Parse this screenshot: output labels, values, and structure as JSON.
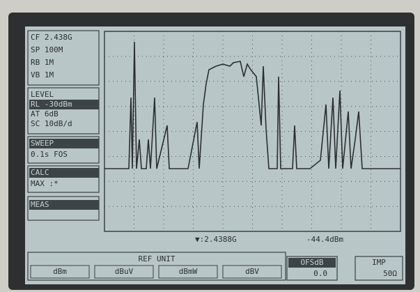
{
  "left_panel": {
    "frequency": [
      "CF  2.438G",
      "SP  100M",
      "RB  1M",
      "VB  1M"
    ],
    "level": {
      "title": "LEVEL",
      "lines": [
        "RL -30dBm",
        "AT 6dB",
        "SC 10dB/d"
      ]
    },
    "sweep": {
      "title": "SWEEP",
      "lines": [
        "0.1s FOS"
      ]
    },
    "calc": {
      "title": "CALC",
      "lines": [
        "MAX   :*"
      ]
    },
    "meas": {
      "title": "MEAS"
    }
  },
  "marker": {
    "frequency": "▼:2.4388G",
    "level": "-44.4dBm"
  },
  "softkeys": {
    "title": "REF UNIT",
    "options": [
      "dBm",
      "dBuV",
      "dBmW",
      "dBV"
    ]
  },
  "offset": {
    "label": "OFSdB",
    "value": "0.0"
  },
  "impedance": {
    "label": "IMP",
    "value": "50Ω"
  }
}
